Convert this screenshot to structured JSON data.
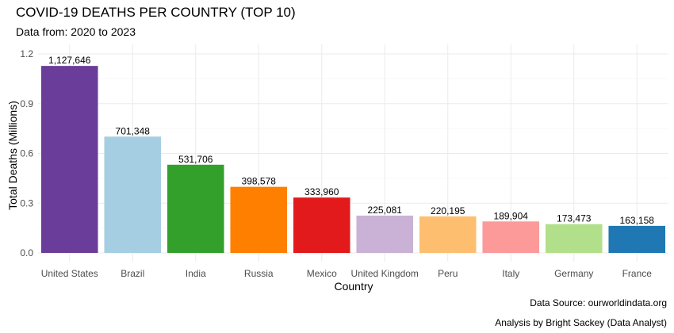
{
  "chart_data": {
    "type": "bar",
    "title": "COVID-19 DEATHS PER COUNTRY (TOP 10)",
    "subtitle": "Data from: 2020 to 2023",
    "xlabel": "Country",
    "ylabel": "Total Deaths (Millions)",
    "ylim": [
      0,
      1.2
    ],
    "yticks": [
      0.0,
      0.3,
      0.6,
      0.9,
      1.2
    ],
    "ytick_labels": [
      "0.0",
      "0.3",
      "0.6",
      "0.9",
      "1.2"
    ],
    "grid": true,
    "legend": "none",
    "categories": [
      "United States",
      "Brazil",
      "India",
      "Russia",
      "Mexico",
      "United Kingdom",
      "Peru",
      "Italy",
      "Germany",
      "France"
    ],
    "values": [
      1127646,
      701348,
      531706,
      398578,
      333960,
      225081,
      220195,
      189904,
      173473,
      163158
    ],
    "data_labels": [
      "1,127,646",
      "701,348",
      "531,706",
      "398,578",
      "333,960",
      "225,081",
      "220,195",
      "189,904",
      "173,473",
      "163,158"
    ],
    "colors": [
      "#6a3d9a",
      "#a6cee3",
      "#33a02c",
      "#ff7f00",
      "#e31a1c",
      "#cab2d6",
      "#fdbf6f",
      "#fb9a99",
      "#b2df8a",
      "#1f78b4"
    ]
  },
  "captions": {
    "source": "Data Source: ourworldindata.org",
    "analysis": "Analysis by Bright Sackey (Data Analyst)"
  }
}
